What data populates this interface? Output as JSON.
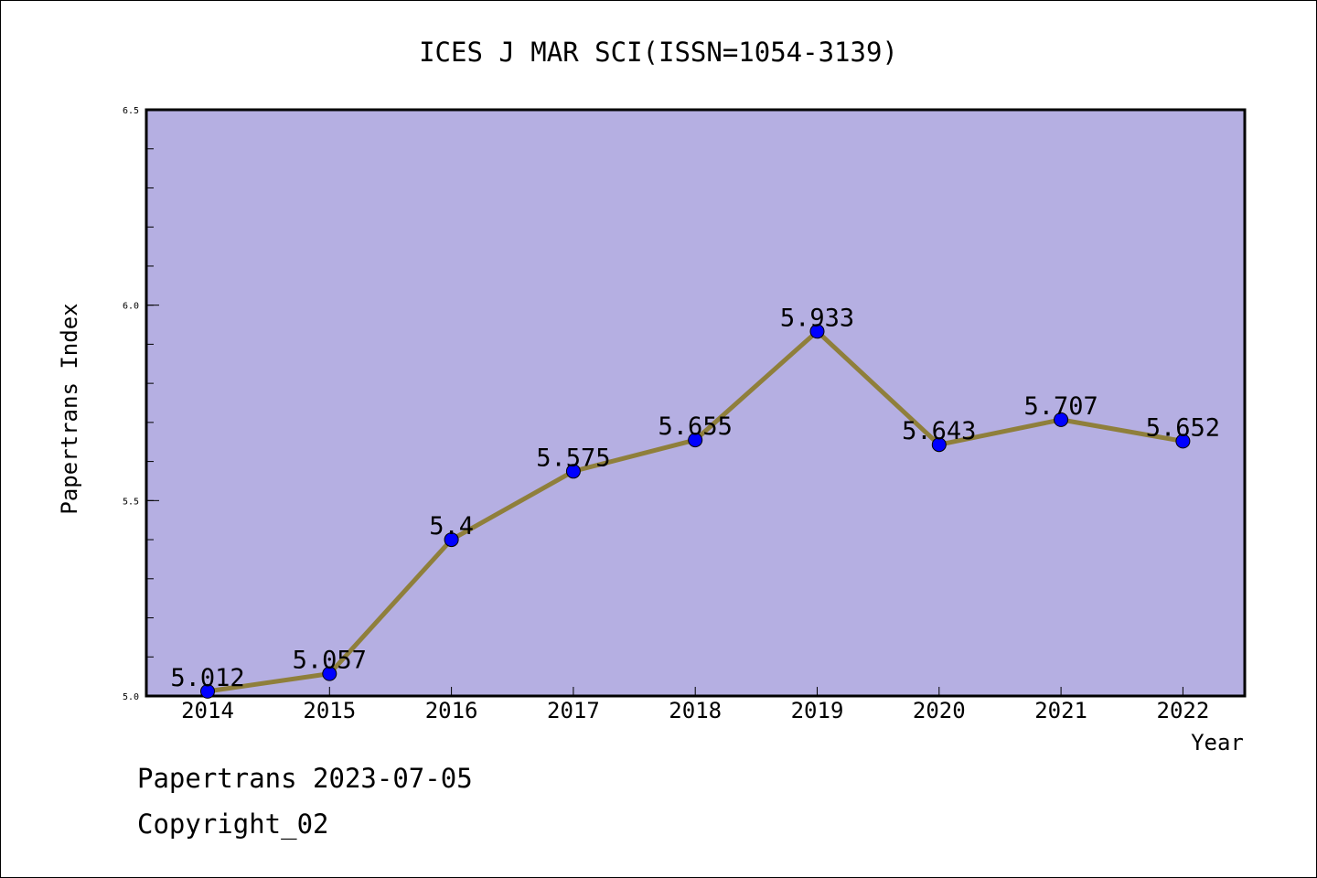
{
  "chart_data": {
    "type": "line",
    "title": "ICES J MAR SCI(ISSN=1054-3139)",
    "xlabel": "Year",
    "ylabel": "Papertrans Index",
    "categories": [
      "2014",
      "2015",
      "2016",
      "2017",
      "2018",
      "2019",
      "2020",
      "2021",
      "2022"
    ],
    "values": [
      5.012,
      5.057,
      5.4,
      5.575,
      5.655,
      5.933,
      5.643,
      5.707,
      5.652
    ],
    "value_labels": [
      "5.012",
      "5.057",
      "5.4",
      "5.575",
      "5.655",
      "5.933",
      "5.643",
      "5.707",
      "5.652"
    ],
    "ylim": [
      5.0,
      6.5
    ],
    "yticks": [
      "5.0",
      "5.5",
      "6.0",
      "6.5"
    ],
    "grid": false,
    "colors": {
      "plot_background": "#b5afe2",
      "line": "#8f7f3b",
      "marker": "#0000ff"
    }
  },
  "footer": {
    "line1": "Papertrans 2023-07-05",
    "line2": "Copyright_02"
  }
}
